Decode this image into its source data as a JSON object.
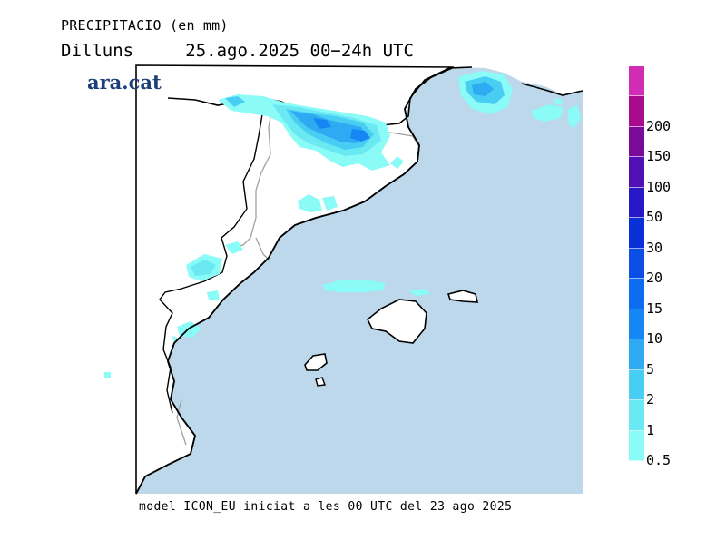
{
  "header": {
    "title": "PRECIPITACIO (en mm)",
    "day": "Dilluns",
    "date_range": "25.ago.2025 00−24h UTC"
  },
  "brand": {
    "logo_text": "ara.cat"
  },
  "footer": {
    "model_note": "model ICON_EU iniciat a les 00 UTC del 23 ago 2025"
  },
  "map": {
    "region": "Catalonia, Valencia coast and Balearic Islands",
    "sea_color": "#bcd8ea",
    "land_color": "#ffffff",
    "coast_color": "#000000",
    "border_color": "#999999"
  },
  "legend": {
    "unit": "mm",
    "levels": [
      {
        "label": "0.5",
        "color": "#8afbf6"
      },
      {
        "label": "1",
        "color": "#6be9f3"
      },
      {
        "label": "2",
        "color": "#48cdf3"
      },
      {
        "label": "5",
        "color": "#2eaaf2"
      },
      {
        "label": "10",
        "color": "#1586f4"
      },
      {
        "label": "15",
        "color": "#0d6cf0"
      },
      {
        "label": "20",
        "color": "#0a4ee6"
      },
      {
        "label": "30",
        "color": "#0830d6"
      },
      {
        "label": "50",
        "color": "#2618c6"
      },
      {
        "label": "100",
        "color": "#5010b5"
      },
      {
        "label": "150",
        "color": "#7a0a98"
      },
      {
        "label": "200",
        "color": "#a80c8c"
      },
      {
        "label": "",
        "color": "#d22cb4"
      }
    ]
  }
}
